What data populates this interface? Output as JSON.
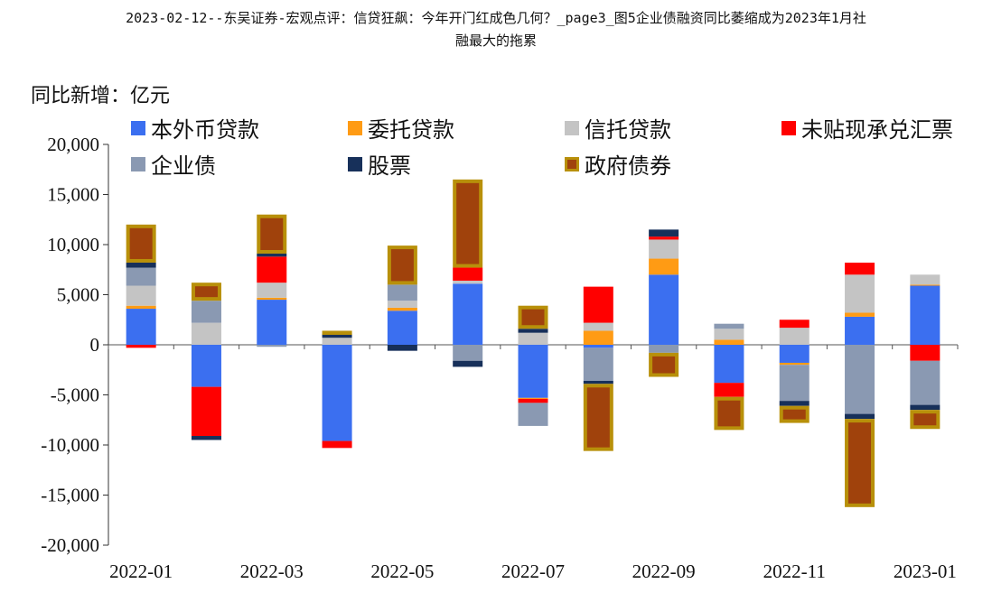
{
  "title_line1": "2023-02-12--东吴证券-宏观点评：信贷狂飙：今年开门红成色几何？_page3_图5企业债融资同比萎缩成为2023年1月社",
  "title_line2": "融最大的拖累",
  "chart_data": {
    "type": "bar",
    "stacked": true,
    "unit_label": "同比新增：亿元",
    "categories": [
      "2022-01",
      "2022-02",
      "2022-03",
      "2022-04",
      "2022-05",
      "2022-06",
      "2022-07",
      "2022-08",
      "2022-09",
      "2022-10",
      "2022-11",
      "2022-12",
      "2023-01"
    ],
    "x_tick_labels": [
      "2022-01",
      "2022-03",
      "2022-05",
      "2022-07",
      "2022-09",
      "2022-11",
      "2023-01"
    ],
    "ylim": [
      -20000,
      20000
    ],
    "y_ticks": [
      20000,
      15000,
      10000,
      5000,
      0,
      -5000,
      -10000,
      -15000,
      -20000
    ],
    "y_tick_labels": [
      "20,000",
      "15,000",
      "10,000",
      "5,000",
      "0",
      "-5,000",
      "-10,000",
      "-15,000",
      "-20,000"
    ],
    "legend": {
      "placement": "top",
      "columns": 4
    },
    "series": [
      {
        "name": "本外币贷款",
        "color": "#3b6ff0",
        "values": [
          3600,
          -4200,
          4500,
          -9600,
          3400,
          6100,
          -5300,
          -300,
          7000,
          -3800,
          -1800,
          2800,
          5900
        ]
      },
      {
        "name": "委托贷款",
        "color": "#ff9b14",
        "values": [
          300,
          0,
          200,
          0,
          300,
          0,
          -100,
          1400,
          1600,
          500,
          -200,
          400,
          100
        ]
      },
      {
        "name": "信托贷款",
        "color": "#c4c4c4",
        "values": [
          2000,
          2200,
          1500,
          700,
          700,
          300,
          1200,
          800,
          1900,
          1100,
          1700,
          3800,
          1000
        ]
      },
      {
        "name": "未贴现承兑汇票",
        "color": "#ff0000",
        "values": [
          -300,
          -4900,
          2600,
          -700,
          0,
          1300,
          -400,
          3600,
          300,
          -1400,
          800,
          1200,
          -1600
        ]
      },
      {
        "name": "企业债",
        "color": "#8a99b2",
        "values": [
          1800,
          2200,
          -200,
          0,
          1600,
          -1600,
          -2300,
          -3300,
          -800,
          500,
          -3600,
          -6900,
          -4400
        ]
      },
      {
        "name": "股票",
        "color": "#17305a",
        "values": [
          500,
          -400,
          300,
          400,
          -600,
          -600,
          400,
          -300,
          700,
          0,
          -500,
          -500,
          -500
        ]
      },
      {
        "name": "政府债券",
        "color": "#a0420c",
        "border": "#b8900a",
        "values": [
          3800,
          1800,
          3900,
          300,
          3900,
          8800,
          2300,
          -6700,
          -2400,
          -3300,
          -1700,
          -8800,
          -1900
        ]
      }
    ]
  }
}
